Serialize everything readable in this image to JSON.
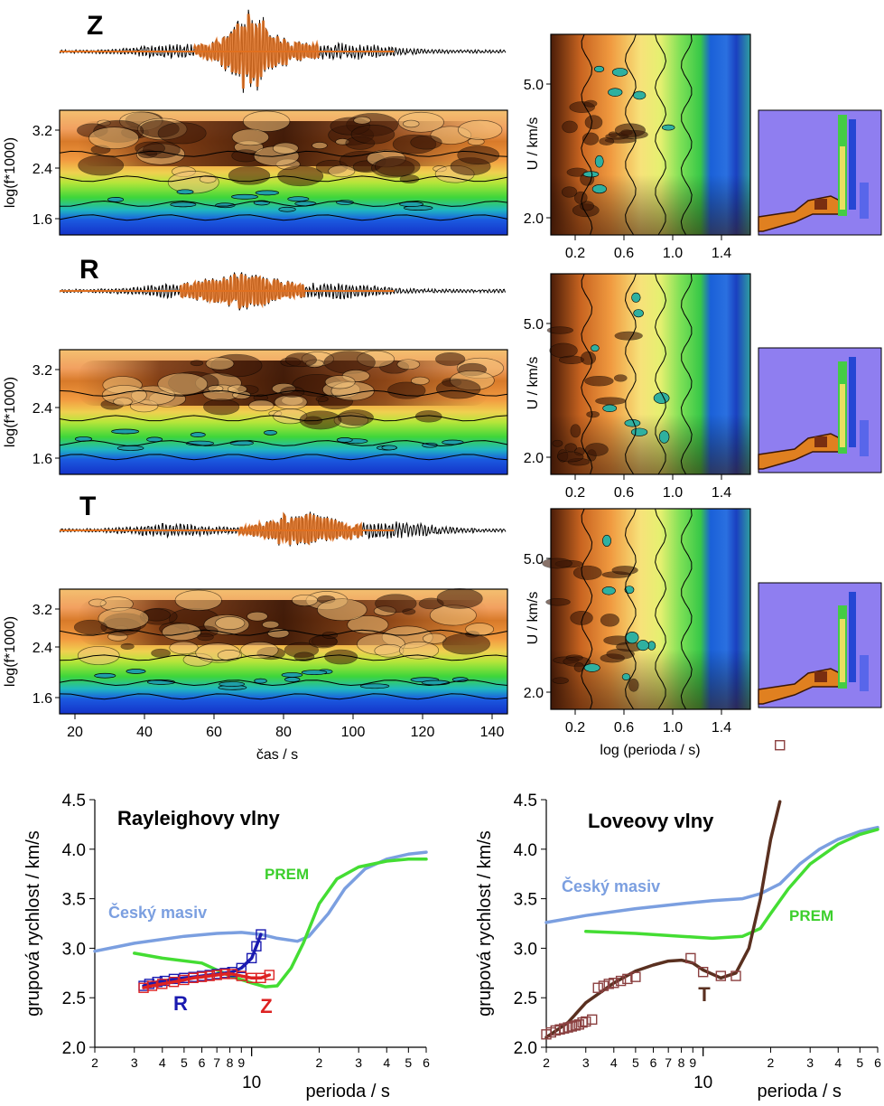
{
  "components": {
    "labels": [
      "Z",
      "R",
      "T"
    ],
    "spectrogram": {
      "ylabel": "log(f*1000)",
      "yticks": [
        "3.2",
        "2.4",
        "1.6"
      ],
      "xticks": [
        "20",
        "40",
        "60",
        "80",
        "100",
        "120",
        "140"
      ],
      "xlabel": "čas / s"
    },
    "group_velocity_map": {
      "ylabel": "U / km/s",
      "yticks": [
        "5.0",
        "2.0"
      ],
      "xticks": [
        "0.2",
        "0.6",
        "1.0",
        "1.4"
      ],
      "xlabel": "log (perioda / s)"
    }
  },
  "chart_data": [
    {
      "type": "line",
      "title": "Rayleighovy vlny",
      "xlabel": "perioda / s",
      "ylabel": "grupová rychlost / km/s",
      "xscale": "log",
      "xlim": [
        2,
        60
      ],
      "ylim": [
        2.0,
        4.5
      ],
      "yticks": [
        "2.0",
        "2.5",
        "3.0",
        "3.5",
        "4.0",
        "4.5"
      ],
      "xticks": [
        {
          "v": 2,
          "t": "2"
        },
        {
          "v": 3,
          "t": "3"
        },
        {
          "v": 4,
          "t": "4"
        },
        {
          "v": 5,
          "t": "5"
        },
        {
          "v": 6,
          "t": "6"
        },
        {
          "v": 7,
          "t": "7"
        },
        {
          "v": 8,
          "t": "8"
        },
        {
          "v": 9,
          "t": "9"
        },
        {
          "v": 20,
          "t": "2"
        },
        {
          "v": 30,
          "t": "3"
        },
        {
          "v": 40,
          "t": "4"
        },
        {
          "v": 50,
          "t": "5"
        },
        {
          "v": 60,
          "t": "6"
        }
      ],
      "decade_label": "10",
      "series": [
        {
          "name": "Český masiv",
          "color": "#7b9fe0",
          "x": [
            2,
            3,
            5,
            7,
            9,
            11,
            13,
            16,
            18,
            22,
            26,
            32,
            40,
            50,
            60
          ],
          "y": [
            2.97,
            3.05,
            3.12,
            3.15,
            3.16,
            3.14,
            3.1,
            3.07,
            3.12,
            3.35,
            3.6,
            3.8,
            3.9,
            3.95,
            3.97
          ]
        },
        {
          "name": "PREM",
          "color": "#44dd33",
          "x": [
            3,
            4,
            6,
            8,
            10,
            11.5,
            13,
            15,
            17,
            20,
            24,
            30,
            40,
            50,
            60
          ],
          "y": [
            2.95,
            2.9,
            2.85,
            2.72,
            2.65,
            2.61,
            2.62,
            2.8,
            3.05,
            3.45,
            3.7,
            3.82,
            3.88,
            3.9,
            3.9
          ]
        },
        {
          "name": "R",
          "color": "#1a1ab0",
          "markers": true,
          "x": [
            3.3,
            3.5,
            3.8,
            4.1,
            4.5,
            5,
            5.5,
            6,
            6.5,
            7,
            7.6,
            8.2,
            9,
            10,
            10.5,
            11
          ],
          "y": [
            2.62,
            2.64,
            2.66,
            2.67,
            2.69,
            2.7,
            2.71,
            2.72,
            2.73,
            2.74,
            2.75,
            2.76,
            2.8,
            2.9,
            3.02,
            3.14
          ]
        },
        {
          "name": "Z",
          "color": "#dd2222",
          "markers": true,
          "x": [
            3.3,
            3.6,
            4,
            4.5,
            5,
            5.5,
            6,
            6.5,
            7,
            7.6,
            8.2,
            9,
            10,
            11,
            12
          ],
          "y": [
            2.6,
            2.62,
            2.64,
            2.66,
            2.68,
            2.7,
            2.71,
            2.72,
            2.73,
            2.74,
            2.74,
            2.72,
            2.7,
            2.7,
            2.73
          ]
        }
      ],
      "annotations": [
        "PREM",
        "Český masiv",
        "R",
        "Z"
      ]
    },
    {
      "type": "line",
      "title": "Loveovy vlny",
      "xlabel": "perioda / s",
      "ylabel": "grupová rychlost / km/s",
      "xscale": "log",
      "xlim": [
        2,
        60
      ],
      "ylim": [
        2.0,
        4.5
      ],
      "yticks": [
        "2.0",
        "2.5",
        "3.0",
        "3.5",
        "4.0",
        "4.5"
      ],
      "xticks": [
        {
          "v": 2,
          "t": "2"
        },
        {
          "v": 3,
          "t": "3"
        },
        {
          "v": 4,
          "t": "4"
        },
        {
          "v": 5,
          "t": "5"
        },
        {
          "v": 6,
          "t": "6"
        },
        {
          "v": 7,
          "t": "7"
        },
        {
          "v": 8,
          "t": "8"
        },
        {
          "v": 9,
          "t": "9"
        },
        {
          "v": 20,
          "t": "2"
        },
        {
          "v": 30,
          "t": "3"
        },
        {
          "v": 40,
          "t": "4"
        },
        {
          "v": 50,
          "t": "5"
        },
        {
          "v": 60,
          "t": "6"
        }
      ],
      "decade_label": "10",
      "series": [
        {
          "name": "Český masiv",
          "color": "#7b9fe0",
          "x": [
            2,
            3,
            5,
            8,
            11,
            15,
            18,
            22,
            27,
            33,
            40,
            50,
            60
          ],
          "y": [
            3.26,
            3.33,
            3.4,
            3.45,
            3.48,
            3.5,
            3.55,
            3.65,
            3.85,
            4.0,
            4.1,
            4.18,
            4.22
          ]
        },
        {
          "name": "PREM",
          "color": "#44dd33",
          "x": [
            3,
            5,
            8,
            11,
            15,
            18,
            20,
            24,
            30,
            40,
            50,
            60
          ],
          "y": [
            3.17,
            3.15,
            3.12,
            3.1,
            3.12,
            3.2,
            3.35,
            3.6,
            3.85,
            4.05,
            4.15,
            4.2
          ]
        },
        {
          "name": "T",
          "color": "#5a3020",
          "x": [
            2,
            2.5,
            3,
            4,
            5,
            6,
            7,
            8,
            9,
            10,
            12,
            14,
            16,
            18,
            20,
            22
          ],
          "y": [
            2.1,
            2.25,
            2.45,
            2.65,
            2.77,
            2.83,
            2.87,
            2.88,
            2.85,
            2.78,
            2.7,
            2.75,
            3.0,
            3.5,
            4.1,
            4.48
          ]
        },
        {
          "name": "T-markers",
          "color": "#8b4040",
          "markers": true,
          "line": false,
          "x": [
            2,
            2.1,
            2.2,
            2.3,
            2.4,
            2.5,
            2.6,
            2.7,
            2.8,
            2.9,
            3.0,
            3.2,
            3.4,
            3.6,
            3.8,
            4.0,
            4.3,
            4.6,
            5,
            8.8,
            10,
            12,
            14
          ],
          "y": [
            2.13,
            2.15,
            2.17,
            2.18,
            2.19,
            2.2,
            2.21,
            2.22,
            2.23,
            2.25,
            2.26,
            2.28,
            2.6,
            2.62,
            2.64,
            2.65,
            2.67,
            2.69,
            2.71,
            2.9,
            2.76,
            2.72,
            2.72
          ]
        }
      ],
      "outlier": {
        "x": 22,
        "y": 5.05
      },
      "annotations": [
        "Český masiv",
        "PREM",
        "T"
      ]
    }
  ]
}
